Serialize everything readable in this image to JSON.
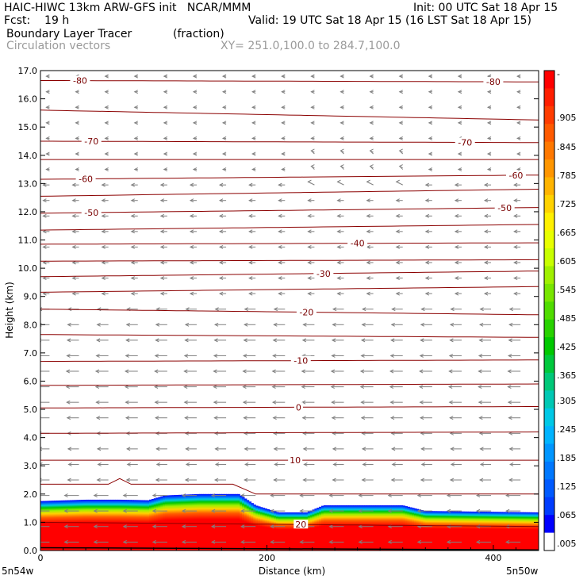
{
  "header": {
    "line1_left": "HAIC-HIWC 13km ARW-GFS init   NCAR/MMM",
    "line1_right": "Init: 00 UTC Sat 18 Apr 15",
    "line2_left": "Fcst:    19 h",
    "line2_right": "Valid: 19 UTC Sat 18 Apr 15 (16 LST Sat 18 Apr 15)",
    "line3_left": "Boundary Layer Tracer",
    "line3_mid": "(fraction)",
    "line4_left": "Circulation vectors",
    "line4_mid": "XY= 251.0,100.0 to 284.7,100.0"
  },
  "chart_data": {
    "type": "heatmap",
    "ylabel": "Height (km)",
    "xlabel": "Distance (km)",
    "xlim": [
      0,
      440
    ],
    "ylim": [
      0,
      17
    ],
    "x_ticks": [
      {
        "value": 0,
        "label": "0"
      },
      {
        "value": 200,
        "label": "200"
      },
      {
        "value": 400,
        "label": "400"
      }
    ],
    "x_end_labels": {
      "left": "5n54w",
      "right": "5n50w"
    },
    "y_ticks": [
      "0.0",
      "1.0",
      "2.0",
      "3.0",
      "4.0",
      "5.0",
      "6.0",
      "7.0",
      "8.0",
      "9.0",
      "10.0",
      "11.0",
      "12.0",
      "13.0",
      "14.0",
      "15.0",
      "16.0",
      "17.0"
    ],
    "tracer_top_profile": [
      {
        "x": 0,
        "top_km": 1.75
      },
      {
        "x": 40,
        "top_km": 1.8
      },
      {
        "x": 70,
        "top_km": 1.8
      },
      {
        "x": 95,
        "top_km": 1.78
      },
      {
        "x": 110,
        "top_km": 1.95
      },
      {
        "x": 140,
        "top_km": 2.0
      },
      {
        "x": 175,
        "top_km": 2.0
      },
      {
        "x": 190,
        "top_km": 1.6
      },
      {
        "x": 210,
        "top_km": 1.35
      },
      {
        "x": 235,
        "top_km": 1.35
      },
      {
        "x": 250,
        "top_km": 1.6
      },
      {
        "x": 320,
        "top_km": 1.6
      },
      {
        "x": 340,
        "top_km": 1.4
      },
      {
        "x": 440,
        "top_km": 1.35
      }
    ],
    "temperature_contours": [
      {
        "label": "-80",
        "h0": 16.65,
        "h1": 16.6,
        "labels_at": [
          35,
          400
        ]
      },
      {
        "label": "",
        "h0": 15.6,
        "h1": 15.25,
        "labels_at": []
      },
      {
        "label": "-70",
        "h0": 14.5,
        "h1": 14.45,
        "labels_at": [
          45,
          375
        ]
      },
      {
        "label": "",
        "h0": 13.85,
        "h1": 13.85,
        "labels_at": []
      },
      {
        "label": "-60",
        "h0": 13.15,
        "h1": 13.3,
        "labels_at": [
          40,
          420
        ]
      },
      {
        "label": "",
        "h0": 12.55,
        "h1": 12.8,
        "labels_at": []
      },
      {
        "label": "-50",
        "h0": 11.95,
        "h1": 12.15,
        "labels_at": [
          45,
          410
        ]
      },
      {
        "label": "",
        "h0": 11.35,
        "h1": 11.55,
        "labels_at": []
      },
      {
        "label": "-40",
        "h0": 10.85,
        "h1": 10.9,
        "labels_at": [
          280
        ]
      },
      {
        "label": "",
        "h0": 10.25,
        "h1": 10.3,
        "labels_at": []
      },
      {
        "label": "-30",
        "h0": 9.7,
        "h1": 9.9,
        "labels_at": [
          250
        ]
      },
      {
        "label": "",
        "h0": 9.15,
        "h1": 9.35,
        "labels_at": []
      },
      {
        "label": "-20",
        "h0": 8.55,
        "h1": 8.35,
        "labels_at": [
          235
        ]
      },
      {
        "label": "",
        "h0": 7.65,
        "h1": 7.55,
        "labels_at": []
      },
      {
        "label": "-10",
        "h0": 6.7,
        "h1": 6.75,
        "labels_at": [
          230
        ]
      },
      {
        "label": "",
        "h0": 5.85,
        "h1": 5.9,
        "labels_at": []
      },
      {
        "label": "0",
        "h0": 5.05,
        "h1": 5.1,
        "labels_at": [
          228
        ]
      },
      {
        "label": "",
        "h0": 4.15,
        "h1": 4.2,
        "labels_at": []
      },
      {
        "label": "10",
        "h0": 3.2,
        "h1": 3.2,
        "labels_at": [
          225
        ]
      },
      {
        "label": "",
        "h0": 2.35,
        "h1": 2.35,
        "labels_at": []
      },
      {
        "label": "20",
        "h0": 1.0,
        "h1": 0.85,
        "labels_at": [
          230
        ]
      }
    ],
    "vectors": {
      "x_spacing_km": 26,
      "y_spacing_km": 0.55,
      "direction": "westward",
      "color": "#808080"
    },
    "colorbar": {
      "ticks": [
        "-",
        ".905",
        ".845",
        ".785",
        ".725",
        ".665",
        ".605",
        ".545",
        ".485",
        ".425",
        ".365",
        ".305",
        ".245",
        ".185",
        ".125",
        ".065",
        ".005"
      ],
      "colors": [
        "#ff0000",
        "#ff1e00",
        "#ff3c00",
        "#ff5a00",
        "#ff7800",
        "#ff9600",
        "#ffb400",
        "#ffd200",
        "#fff000",
        "#e8ff00",
        "#c8ff00",
        "#a0f000",
        "#78e600",
        "#50dc00",
        "#28d200",
        "#00c800",
        "#00c83c",
        "#00c878",
        "#00c8b4",
        "#00c8e6",
        "#00b4ff",
        "#0096ff",
        "#0078ff",
        "#005aff",
        "#003cff",
        "#0000ff",
        "#ffffff"
      ],
      "contour_color": "#8b0000"
    }
  }
}
